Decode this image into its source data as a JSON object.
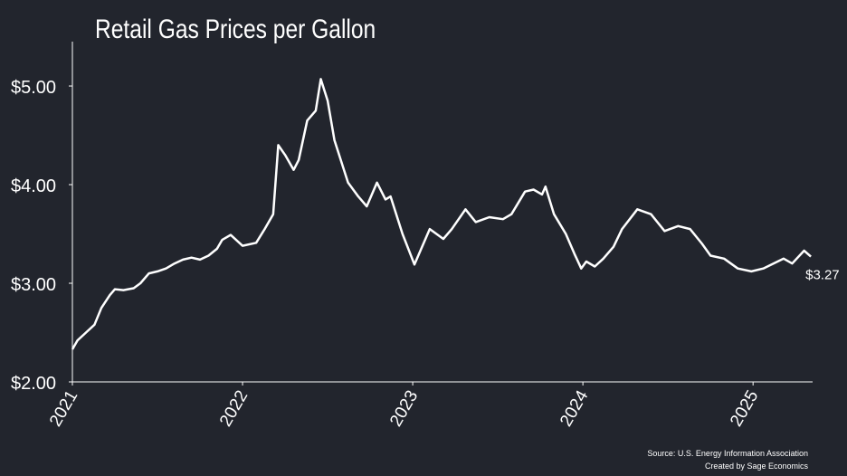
{
  "chart_data": {
    "type": "line",
    "title": "Retail Gas Prices per Gallon",
    "source": "Source: U.S. Energy Information Association",
    "credit": "Created by Sage Economics",
    "xlim": [
      2021,
      2025.35
    ],
    "xticks": [
      2021,
      2022,
      2023,
      2024,
      2025
    ],
    "ylim": [
      2,
      5.45
    ],
    "yticks": [
      {
        "value": 2,
        "label": "$2.00"
      },
      {
        "value": 3,
        "label": "$3.00"
      },
      {
        "value": 4,
        "label": "$4.00"
      },
      {
        "value": 5,
        "label": "$5.00"
      }
    ],
    "end_label": "$3.27",
    "series": [
      {
        "name": "Retail gas price",
        "color": "#ffffff",
        "x": [
          2021.0,
          2021.03,
          2021.08,
          2021.13,
          2021.17,
          2021.22,
          2021.25,
          2021.3,
          2021.36,
          2021.4,
          2021.45,
          2021.5,
          2021.55,
          2021.6,
          2021.65,
          2021.7,
          2021.75,
          2021.8,
          2021.85,
          2021.88,
          2021.93,
          2022.0,
          2022.08,
          2022.13,
          2022.18,
          2022.21,
          2022.25,
          2022.3,
          2022.33,
          2022.38,
          2022.43,
          2022.46,
          2022.5,
          2022.54,
          2022.62,
          2022.68,
          2022.73,
          2022.79,
          2022.84,
          2022.87,
          2022.94,
          2023.01,
          2023.05,
          2023.1,
          2023.18,
          2023.23,
          2023.31,
          2023.37,
          2023.45,
          2023.53,
          2023.58,
          2023.66,
          2023.71,
          2023.76,
          2023.78,
          2023.83,
          2023.9,
          2023.95,
          2023.99,
          2024.02,
          2024.07,
          2024.12,
          2024.18,
          2024.23,
          2024.32,
          2024.4,
          2024.48,
          2024.56,
          2024.63,
          2024.7,
          2024.75,
          2024.83,
          2024.91,
          2024.99,
          2025.06,
          2025.12,
          2025.18,
          2025.23,
          2025.3,
          2025.34
        ],
        "values": [
          2.33,
          2.42,
          2.5,
          2.58,
          2.75,
          2.88,
          2.94,
          2.93,
          2.95,
          3.0,
          3.1,
          3.12,
          3.15,
          3.2,
          3.24,
          3.26,
          3.24,
          3.28,
          3.35,
          3.44,
          3.49,
          3.38,
          3.41,
          3.55,
          3.7,
          4.4,
          4.3,
          4.15,
          4.25,
          4.65,
          4.75,
          5.07,
          4.85,
          4.45,
          4.02,
          3.88,
          3.78,
          4.02,
          3.85,
          3.88,
          3.5,
          3.19,
          3.35,
          3.55,
          3.45,
          3.55,
          3.75,
          3.62,
          3.67,
          3.65,
          3.7,
          3.93,
          3.95,
          3.9,
          3.98,
          3.7,
          3.5,
          3.3,
          3.15,
          3.22,
          3.17,
          3.25,
          3.37,
          3.55,
          3.75,
          3.7,
          3.53,
          3.58,
          3.55,
          3.4,
          3.28,
          3.25,
          3.15,
          3.12,
          3.15,
          3.2,
          3.25,
          3.2,
          3.33,
          3.27
        ]
      }
    ]
  }
}
